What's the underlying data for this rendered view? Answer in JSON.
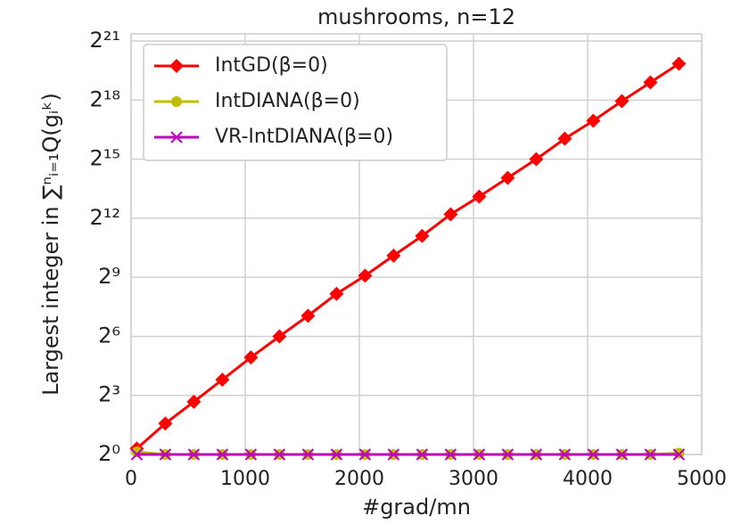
{
  "chart_data": {
    "type": "line",
    "title": "mushrooms, n=12",
    "x_label": "#grad/mn",
    "y_label": "Largest integer in ∑ⁿᵢ₌₁Q(gᵢᵏ)",
    "x": [
      50,
      300,
      550,
      800,
      1050,
      1300,
      1550,
      1800,
      2050,
      2300,
      2550,
      2800,
      3050,
      3300,
      3550,
      3800,
      4050,
      4300,
      4550,
      4800
    ],
    "series": [
      {
        "name": "IntGD(β=0)",
        "color": "#ff0000",
        "marker": "diamond",
        "values": [
          1.23,
          2.97,
          6.4,
          13.9,
          30.5,
          64,
          132,
          286,
          541,
          1097,
          2195,
          4705,
          8780,
          16950,
          32768,
          67400,
          126600,
          253000,
          489000,
          944000
        ]
      },
      {
        "name": "IntDIANA(β=0)",
        "color": "#bfbf00",
        "marker": "circle",
        "values": [
          1.1,
          1,
          1,
          1,
          1,
          1,
          1,
          1,
          1,
          1,
          1,
          1,
          1,
          1,
          1,
          1,
          1,
          1,
          1,
          1.05
        ]
      },
      {
        "name": "VR-IntDIANA(β=0)",
        "color": "#bf00bf",
        "marker": "x",
        "values": [
          1,
          1,
          1,
          1,
          1,
          1,
          1,
          1,
          1,
          1,
          1,
          1,
          1,
          1,
          1,
          1,
          1,
          1,
          1,
          1
        ]
      }
    ],
    "xlim": [
      0,
      5000
    ],
    "xticks": [
      0,
      1000,
      2000,
      3000,
      4000,
      5000
    ],
    "ylim": [
      1,
      2700000
    ],
    "log_y": true,
    "yticks": [
      {
        "value": 1,
        "label": "2⁰"
      },
      {
        "value": 8,
        "label": "2³"
      },
      {
        "value": 64,
        "label": "2⁶"
      },
      {
        "value": 512,
        "label": "2⁹"
      },
      {
        "value": 4096,
        "label": "2¹²"
      },
      {
        "value": 32768,
        "label": "2¹⁵"
      },
      {
        "value": 262144,
        "label": "2¹⁸"
      },
      {
        "value": 2097152,
        "label": "2²¹"
      }
    ],
    "grid": true,
    "legend": "upper left"
  }
}
